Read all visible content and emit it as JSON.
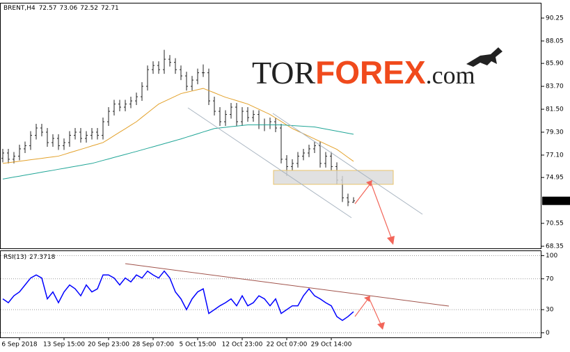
{
  "logo": {
    "part1": "TOR",
    "part2": "FOREX",
    "part3": ".com"
  },
  "chart_data": [
    {
      "type": "ohlc",
      "title": "BRENT,H4",
      "color": "#222222",
      "categories": [
        null,
        null,
        null,
        "6 Sep 2018",
        null,
        null,
        null,
        null,
        null,
        null,
        null,
        "13 Sep 15:00",
        null,
        null,
        null,
        null,
        null,
        null,
        null,
        "20 Sep 23:00",
        null,
        null,
        null,
        null,
        null,
        null,
        null,
        "28 Sep 07:00",
        null,
        null,
        null,
        null,
        null,
        null,
        null,
        "5 Oct 15:00",
        null,
        null,
        null,
        null,
        null,
        null,
        null,
        "12 Oct 23:00",
        null,
        null,
        null,
        null,
        null,
        null,
        null,
        "22 Oct 07:00",
        null,
        null,
        null,
        null,
        null,
        null,
        null,
        "29 Oct 14:00",
        null,
        null,
        null,
        null
      ],
      "open": [
        76.8,
        77.3,
        76.7,
        77.0,
        77.7,
        78.0,
        79.0,
        79.7,
        79.3,
        78.3,
        78.7,
        78.0,
        78.3,
        79.0,
        79.3,
        78.7,
        79.0,
        79.3,
        79.0,
        80.3,
        81.3,
        82.0,
        81.7,
        82.0,
        82.3,
        82.7,
        83.7,
        85.3,
        85.7,
        85.3,
        86.3,
        86.0,
        85.3,
        84.7,
        83.7,
        84.3,
        85.0,
        85.0,
        82.3,
        81.3,
        80.3,
        81.0,
        81.7,
        80.3,
        81.3,
        80.7,
        81.0,
        80.0,
        80.0,
        80.3,
        79.7,
        76.7,
        76.0,
        76.3,
        77.0,
        77.3,
        77.7,
        78.0,
        76.3,
        77.0,
        76.0,
        74.7,
        73.0,
        72.57
      ],
      "high": [
        77.7,
        77.7,
        77.4,
        78.1,
        78.4,
        79.4,
        80.1,
        80.1,
        79.7,
        79.1,
        79.1,
        78.7,
        79.4,
        79.7,
        79.7,
        79.4,
        79.7,
        79.7,
        80.7,
        81.7,
        82.4,
        82.4,
        82.4,
        82.7,
        83.1,
        84.1,
        85.7,
        86.1,
        86.1,
        87.2,
        86.7,
        86.4,
        85.7,
        85.1,
        84.7,
        85.4,
        85.8,
        85.4,
        82.7,
        81.7,
        81.4,
        82.1,
        82.1,
        81.7,
        81.7,
        81.4,
        81.4,
        80.6,
        80.7,
        80.7,
        80.1,
        77.1,
        76.7,
        77.4,
        77.7,
        78.1,
        78.4,
        78.4,
        77.4,
        77.4,
        76.4,
        75.1,
        73.4,
        73.06
      ],
      "low": [
        76.4,
        76.3,
        76.3,
        76.6,
        77.3,
        77.6,
        78.6,
        78.9,
        77.9,
        77.9,
        77.6,
        77.6,
        77.9,
        78.6,
        78.3,
        78.3,
        78.6,
        78.6,
        78.6,
        79.9,
        80.9,
        81.3,
        81.3,
        81.6,
        81.9,
        82.3,
        83.3,
        84.9,
        84.9,
        84.9,
        85.6,
        84.9,
        84.3,
        83.3,
        83.3,
        83.9,
        84.6,
        81.9,
        80.9,
        79.9,
        79.9,
        80.6,
        79.9,
        79.9,
        80.3,
        80.3,
        79.6,
        79.4,
        79.6,
        79.3,
        76.3,
        75.1,
        75.6,
        75.9,
        76.6,
        76.9,
        77.3,
        75.9,
        75.9,
        75.6,
        74.3,
        72.6,
        72.2,
        72.52
      ],
      "close": [
        77.3,
        76.7,
        77.0,
        77.7,
        78.0,
        79.0,
        79.7,
        79.3,
        78.3,
        78.7,
        78.0,
        78.3,
        79.0,
        79.3,
        78.7,
        79.0,
        79.3,
        79.0,
        80.3,
        81.3,
        82.0,
        81.7,
        82.0,
        82.3,
        82.7,
        83.7,
        85.3,
        85.7,
        85.3,
        86.3,
        86.0,
        85.3,
        84.7,
        83.7,
        84.3,
        85.0,
        85.0,
        82.3,
        81.3,
        80.3,
        81.0,
        81.7,
        80.3,
        81.3,
        80.7,
        81.0,
        80.0,
        80.0,
        80.3,
        79.7,
        76.7,
        76.0,
        76.3,
        77.0,
        77.3,
        77.7,
        78.0,
        76.3,
        77.0,
        76.0,
        74.7,
        73.0,
        72.6,
        72.71
      ],
      "overlays": [
        {
          "color": "#e3a12a",
          "values": [
            76.3,
            76.37,
            76.44,
            76.51,
            76.58,
            76.65,
            76.72,
            76.79,
            76.86,
            76.93,
            77.0,
            77.16,
            77.33,
            77.49,
            77.65,
            77.81,
            77.98,
            78.14,
            78.3,
            78.63,
            78.97,
            79.3,
            79.63,
            79.97,
            80.3,
            80.73,
            81.15,
            81.58,
            82.0,
            82.25,
            82.5,
            82.75,
            83.0,
            83.13,
            83.25,
            83.38,
            83.5,
            83.29,
            83.08,
            82.86,
            82.65,
            82.49,
            82.33,
            82.16,
            82.0,
            81.75,
            81.5,
            81.25,
            81.0,
            80.66,
            80.33,
            79.99,
            79.65,
            79.4,
            79.15,
            78.9,
            78.65,
            78.4,
            78.15,
            77.9,
            77.65,
            77.27,
            76.88,
            76.5
          ]
        },
        {
          "color": "#1fa596",
          "values": [
            74.8,
            74.89,
            74.99,
            75.08,
            75.18,
            75.27,
            75.36,
            75.46,
            75.55,
            75.64,
            75.74,
            75.83,
            75.93,
            76.02,
            76.11,
            76.21,
            76.3,
            76.44,
            76.59,
            76.73,
            76.88,
            77.02,
            77.16,
            77.31,
            77.45,
            77.6,
            77.75,
            77.9,
            78.05,
            78.2,
            78.35,
            78.5,
            78.65,
            78.82,
            78.98,
            79.15,
            79.32,
            79.48,
            79.65,
            79.71,
            79.77,
            79.83,
            79.88,
            79.94,
            80.0,
            80.0,
            80.0,
            80.0,
            80.0,
            80.0,
            80.0,
            79.97,
            79.93,
            79.9,
            79.87,
            79.83,
            79.8,
            79.7,
            79.6,
            79.5,
            79.4,
            79.3,
            79.2,
            79.1
          ]
        }
      ],
      "ylim": [
        68.15,
        91.65
      ],
      "yticks": [
        90.25,
        88.05,
        {
          "value": 85.9,
          "label": "85.90"
        },
        {
          "value": 83.7,
          "label": "83.70"
        },
        {
          "value": 81.5,
          "label": "81.50"
        },
        {
          "value": 79.3,
          "label": "79.30"
        },
        {
          "value": 77.1,
          "label": "77.10"
        },
        74.95,
        70.55,
        68.35
      ]
    },
    {
      "type": "line",
      "title": "RSI(13)",
      "color": "#0000ff",
      "values": [
        44,
        39,
        48,
        53,
        62,
        71,
        75,
        71,
        44,
        53,
        39,
        53,
        62,
        57,
        48,
        62,
        53,
        57,
        75,
        75,
        71,
        62,
        71,
        66,
        75,
        71,
        80,
        75,
        71,
        80,
        71,
        53,
        44,
        30,
        44,
        53,
        57,
        25,
        30,
        35,
        39,
        44,
        35,
        48,
        35,
        39,
        48,
        44,
        35,
        44,
        25,
        30,
        35,
        35,
        48,
        57,
        48,
        44,
        39,
        35,
        21,
        16,
        21,
        27.3718
      ],
      "ylim": [
        -6,
        105
      ],
      "yticks": [
        100,
        70,
        30,
        0
      ]
    }
  ]
}
